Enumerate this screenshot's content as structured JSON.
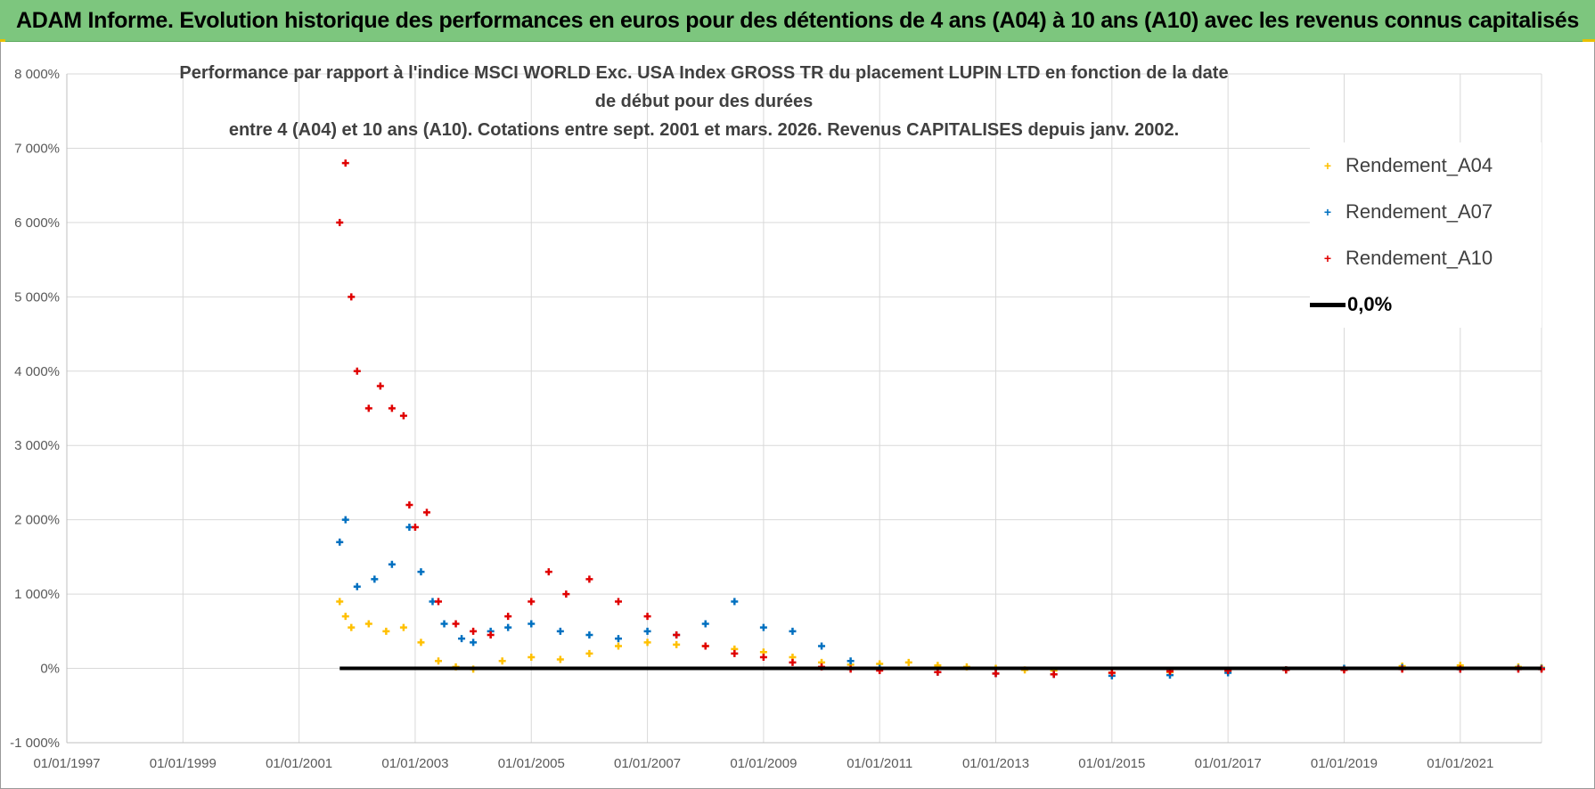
{
  "header": {
    "title": "ADAM Informe. Evolution historique des performances en euros pour des détentions de 4 ans (A04) à 10 ans (A10) avec les revenus connus capitalisés"
  },
  "chart_data": {
    "type": "scatter",
    "title_lines": [
      "Performance par rapport à l'indice MSCI WORLD Exc. USA Index GROSS TR  du placement LUPIN LTD en fonction de la date de début pour des durées",
      "entre 4 (A04) et 10 ans (A10). Cotations entre sept. 2001 et mars. 2026. Revenus CAPITALISES depuis janv. 2002."
    ],
    "x_tick_labels": [
      "01/01/1997",
      "01/01/1999",
      "01/01/2001",
      "01/01/2003",
      "01/01/2005",
      "01/01/2007",
      "01/01/2009",
      "01/01/2011",
      "01/01/2013",
      "01/01/2015",
      "01/01/2017",
      "01/01/2019",
      "01/01/2021"
    ],
    "x_range": [
      1997.0,
      2022.4
    ],
    "y_tick_labels": [
      "-1 000%",
      "0%",
      "1 000%",
      "2 000%",
      "3 000%",
      "4 000%",
      "5 000%",
      "6 000%",
      "7 000%",
      "8 000%"
    ],
    "y_range": [
      -1000,
      8000
    ],
    "y_ticks": [
      -1000,
      0,
      1000,
      2000,
      3000,
      4000,
      5000,
      6000,
      7000,
      8000
    ],
    "legend": [
      "Rendement_A04",
      "Rendement_A07",
      "Rendement_A10",
      "0,0%"
    ],
    "colors": {
      "A04": "#ffc000",
      "A07": "#0070c0",
      "A10": "#e00000",
      "zero": "#000000",
      "grid": "#d9d9d9"
    },
    "series": [
      {
        "name": "Rendement_A04",
        "x": [
          2001.7,
          2001.8,
          2001.9,
          2002.2,
          2002.5,
          2002.8,
          2003.1,
          2003.4,
          2003.7,
          2004.0,
          2004.5,
          2005.0,
          2005.5,
          2006.0,
          2006.5,
          2007.0,
          2007.5,
          2008.0,
          2008.5,
          2009.0,
          2009.5,
          2010.0,
          2010.5,
          2011.0,
          2011.5,
          2012.0,
          2012.5,
          2013.0,
          2013.5,
          2014.0,
          2015.0,
          2016.0,
          2017.0,
          2018.0,
          2019.0,
          2020.0,
          2021.0,
          2022.0,
          2022.4
        ],
        "values": [
          900,
          700,
          550,
          600,
          500,
          550,
          350,
          100,
          20,
          -10,
          100,
          150,
          120,
          200,
          300,
          350,
          320,
          300,
          260,
          220,
          150,
          80,
          50,
          60,
          80,
          40,
          20,
          0,
          -20,
          -30,
          -60,
          -50,
          -40,
          -20,
          0,
          30,
          40,
          20,
          10
        ]
      },
      {
        "name": "Rendement_A07",
        "x": [
          2001.7,
          2001.8,
          2002.0,
          2002.3,
          2002.6,
          2002.9,
          2003.1,
          2003.3,
          2003.5,
          2003.8,
          2004.0,
          2004.3,
          2004.6,
          2005.0,
          2005.5,
          2006.0,
          2006.5,
          2007.0,
          2007.5,
          2008.0,
          2008.5,
          2009.0,
          2009.5,
          2010.0,
          2010.5,
          2011.0,
          2012.0,
          2013.0,
          2014.0,
          2015.0,
          2016.0,
          2017.0,
          2018.0,
          2019.0,
          2020.0,
          2021.0,
          2022.0,
          2022.4
        ],
        "values": [
          1700,
          2000,
          1100,
          1200,
          1400,
          1900,
          1300,
          900,
          600,
          400,
          350,
          500,
          550,
          600,
          500,
          450,
          400,
          500,
          450,
          600,
          900,
          550,
          500,
          300,
          100,
          0,
          -50,
          -70,
          -80,
          -100,
          -90,
          -60,
          -20,
          0,
          10,
          -10,
          0,
          0
        ]
      },
      {
        "name": "Rendement_A10",
        "x": [
          2001.7,
          2001.8,
          2001.9,
          2002.0,
          2002.2,
          2002.4,
          2002.6,
          2002.8,
          2002.9,
          2003.0,
          2003.2,
          2003.4,
          2003.7,
          2004.0,
          2004.3,
          2004.6,
          2005.0,
          2005.3,
          2005.6,
          2006.0,
          2006.5,
          2007.0,
          2007.5,
          2008.0,
          2008.5,
          2009.0,
          2009.5,
          2010.0,
          2010.5,
          2011.0,
          2012.0,
          2013.0,
          2014.0,
          2015.0,
          2016.0,
          2017.0,
          2018.0,
          2019.0,
          2020.0,
          2021.0,
          2022.0,
          2022.4
        ],
        "values": [
          6000,
          6800,
          5000,
          4000,
          3500,
          3800,
          3500,
          3400,
          2200,
          1900,
          2100,
          900,
          600,
          500,
          450,
          700,
          900,
          1300,
          1000,
          1200,
          900,
          700,
          450,
          300,
          200,
          150,
          80,
          20,
          -10,
          -30,
          -50,
          -70,
          -80,
          -60,
          -40,
          -30,
          -20,
          -20,
          -10,
          -10,
          -10,
          -10
        ]
      },
      {
        "name": "0,0%",
        "x": [
          2001.7,
          2022.4
        ],
        "values": [
          0,
          0
        ]
      }
    ]
  }
}
